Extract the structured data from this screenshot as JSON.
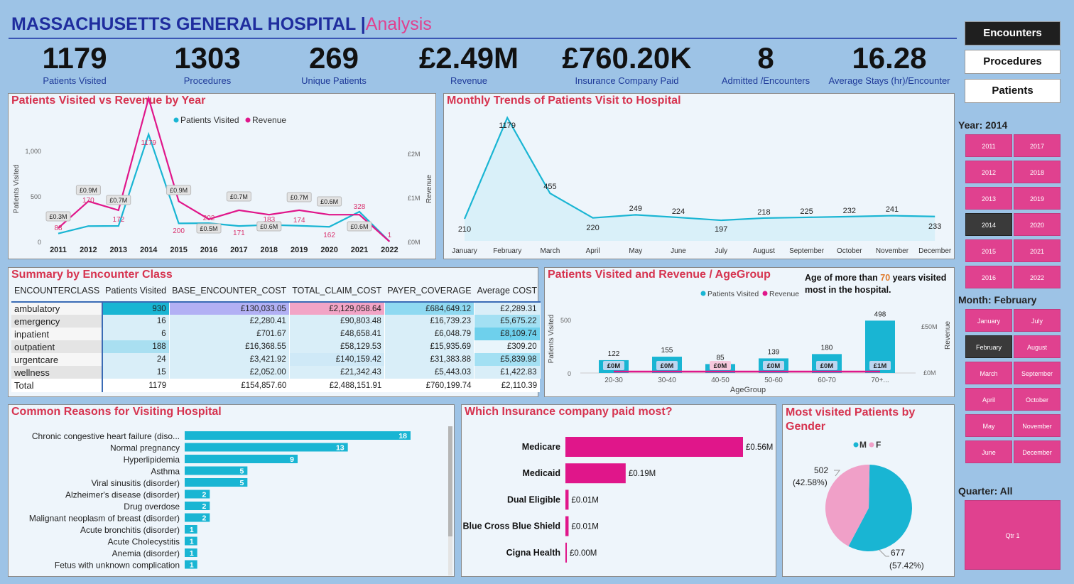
{
  "header": {
    "title": "MASSACHUSETTS GENERAL HOSPITAL",
    "separator": " |",
    "subtitle": "Analysis"
  },
  "kpis": [
    {
      "value": "1179",
      "label": "Patients Visited"
    },
    {
      "value": "1303",
      "label": "Procedures"
    },
    {
      "value": "269",
      "label": "Unique Patients"
    },
    {
      "value": "£2.49M",
      "label": "Revenue"
    },
    {
      "value": "£760.20K",
      "label": "Insurance Company Paid"
    },
    {
      "value": "8",
      "label": "Admitted /Encounters"
    },
    {
      "value": "16.28",
      "label": "Average Stays (hr)/Encounter"
    }
  ],
  "nav": [
    "Encounters",
    "Procedures",
    "Patients"
  ],
  "slicers": {
    "year_label": "Year: 2014",
    "years": [
      "2011",
      "2017",
      "2012",
      "2018",
      "2013",
      "2019",
      "2014",
      "2020",
      "2015",
      "2021",
      "2016",
      "2022"
    ],
    "month_label": "Month: February",
    "months": [
      "January",
      "July",
      "February",
      "August",
      "March",
      "September",
      "April",
      "October",
      "May",
      "November",
      "June",
      "December"
    ],
    "quarter_label": "Quarter: All",
    "quarter": "Qtr 1"
  },
  "chart_data": [
    {
      "id": "yearly",
      "type": "line",
      "title": "Patients Visited vs Revenue by Year",
      "x": [
        "2011",
        "2012",
        "2013",
        "2014",
        "2015",
        "2016",
        "2017",
        "2018",
        "2019",
        "2020",
        "2021",
        "2022"
      ],
      "series": [
        {
          "name": "Patients Visited",
          "values": [
            88,
            170,
            172,
            1179,
            200,
            202,
            171,
            183,
            174,
            162,
            328,
            1
          ],
          "color": "#19b5d3"
        },
        {
          "name": "Revenue",
          "values": [
            0.3,
            0.9,
            0.7,
            3.2,
            0.9,
            0.5,
            0.7,
            0.6,
            0.7,
            0.6,
            0.6,
            0.0
          ],
          "labels": [
            "£0.3M",
            "£0.9M",
            "£0.7M",
            "",
            "£0.9M",
            "£0.5M",
            "£0.7M",
            "£0.6M",
            "£0.7M",
            "£0.6M",
            "£0.6M",
            ""
          ],
          "color": "#e0168a"
        }
      ],
      "point_labels": [
        "88",
        "170",
        "172",
        "1179",
        "200",
        "202",
        "171",
        "183",
        "174",
        "162",
        "328",
        "1"
      ],
      "ylabel": "Patients Visited",
      "y2label": "Revenue",
      "yticks": [
        "0",
        "500",
        "1,000"
      ],
      "y2ticks": [
        "£0M",
        "£1M",
        "£2M"
      ],
      "ylim": [
        0,
        1250
      ]
    },
    {
      "id": "monthly",
      "type": "area",
      "title": "Monthly Trends of Patients Visit to Hospital",
      "x": [
        "January",
        "February",
        "March",
        "April",
        "May",
        "June",
        "July",
        "August",
        "September",
        "October",
        "November",
        "December"
      ],
      "values": [
        210,
        1179,
        455,
        220,
        249,
        224,
        197,
        218,
        225,
        232,
        241,
        233
      ],
      "labels": [
        "210",
        "1179",
        "455",
        "220",
        "249",
        "224",
        "197",
        "218",
        "225",
        "232",
        "241",
        "233"
      ],
      "ylim": [
        0,
        1250
      ]
    },
    {
      "id": "age",
      "type": "bar",
      "title": "Patients Visited and Revenue / AgeGroup",
      "categories": [
        "20-30",
        "30-40",
        "40-50",
        "50-60",
        "60-70",
        "70+..."
      ],
      "series": [
        {
          "name": "Patients Visited",
          "values": [
            122,
            155,
            85,
            139,
            180,
            498
          ],
          "color": "#19b5d3"
        },
        {
          "name": "Revenue",
          "values": [
            0,
            0,
            0,
            0,
            0,
            1
          ],
          "labels": [
            "£0M",
            "£0M",
            "£0M",
            "£0M",
            "£0M",
            "£1M"
          ],
          "color": "#e0168a"
        }
      ],
      "xlabel": "AgeGroup",
      "ylabel": "Patients Visited",
      "y2label": "Revenue",
      "yticks": [
        "0",
        "500"
      ],
      "y2ticks": [
        "£0M",
        "£50M"
      ],
      "ylim": [
        0,
        500
      ]
    },
    {
      "id": "reasons",
      "type": "bar",
      "title": "Common Reasons for Visiting Hospital",
      "categories": [
        "Chronic congestive heart failure (diso...",
        "Normal pregnancy",
        "Hyperlipidemia",
        "Asthma",
        "Viral sinusitis (disorder)",
        "Alzheimer's disease (disorder)",
        "Drug overdose",
        "Malignant neoplasm of breast (disorder)",
        "Acute bronchitis (disorder)",
        "Acute Cholecystitis",
        "Anemia (disorder)",
        "Fetus with unknown complication"
      ],
      "values": [
        18,
        13,
        9,
        5,
        5,
        2,
        2,
        2,
        1,
        1,
        1,
        1
      ]
    },
    {
      "id": "insurance",
      "type": "bar",
      "title": "Which Insurance company paid most?",
      "categories": [
        "Medicare",
        "Medicaid",
        "Dual Eligible",
        "Blue Cross Blue Shield",
        "Cigna Health"
      ],
      "values": [
        0.56,
        0.19,
        0.01,
        0.01,
        0.0
      ],
      "labels": [
        "£0.56M",
        "£0.19M",
        "£0.01M",
        "£0.01M",
        "£0.00M"
      ]
    },
    {
      "id": "gender",
      "type": "pie",
      "title": "Most visited Patients by Gender",
      "slices": [
        {
          "name": "M",
          "value": 677,
          "label": "677",
          "pct": "(57.42%)",
          "color": "#19b5d3"
        },
        {
          "name": "F",
          "value": 502,
          "label": "502",
          "pct": "(42.58%)",
          "color": "#f0a0c8"
        }
      ]
    }
  ],
  "age_note": {
    "pre": "Age of more than ",
    "num": "70",
    "post": " years visited most in the hospital."
  },
  "summary": {
    "title": "Summary by Encounter Class",
    "headers": [
      "ENCOUNTERCLASS",
      "Patients Visited",
      "BASE_ENCOUNTER_COST",
      "TOTAL_CLAIM_COST",
      "PAYER_COVERAGE",
      "Average COST"
    ],
    "rows": [
      [
        "ambulatory",
        "930",
        "£130,033.05",
        "£2,129,058.64",
        "£684,649.12",
        "£2,289.31"
      ],
      [
        "emergency",
        "16",
        "£2,280.41",
        "£90,803.48",
        "£16,739.23",
        "£5,675.22"
      ],
      [
        "inpatient",
        "6",
        "£701.67",
        "£48,658.41",
        "£6,048.79",
        "£8,109.74"
      ],
      [
        "outpatient",
        "188",
        "£16,368.55",
        "£58,129.53",
        "£15,935.69",
        "£309.20"
      ],
      [
        "urgentcare",
        "24",
        "£3,421.92",
        "£140,159.42",
        "£31,383.88",
        "£5,839.98"
      ],
      [
        "wellness",
        "15",
        "£2,052.00",
        "£21,342.43",
        "£5,443.03",
        "£1,422.83"
      ]
    ],
    "total": [
      "Total",
      "1179",
      "£154,857.60",
      "£2,488,151.91",
      "£760,199.74",
      "£2,110.39"
    ]
  }
}
